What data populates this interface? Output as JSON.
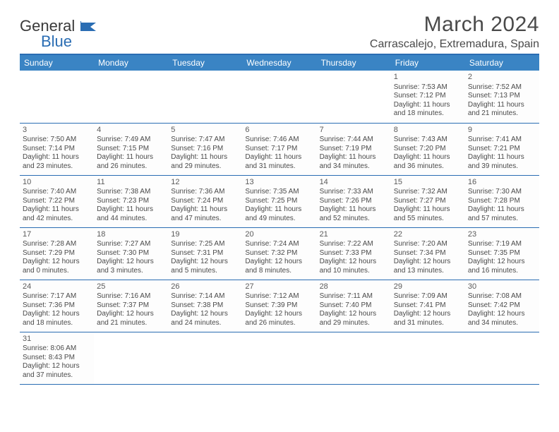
{
  "logo": {
    "text1": "General",
    "text2": "Blue"
  },
  "title": "March 2024",
  "location": "Carrascalejo, Extremadura, Spain",
  "day_headers": [
    "Sunday",
    "Monday",
    "Tuesday",
    "Wednesday",
    "Thursday",
    "Friday",
    "Saturday"
  ],
  "colors": {
    "header_bg": "#3a84c4",
    "rule": "#2a6db3",
    "text": "#4a4a4a"
  },
  "weeks": [
    [
      null,
      null,
      null,
      null,
      null,
      {
        "d": "1",
        "sr": "7:53 AM",
        "ss": "7:12 PM",
        "dl": "11 hours and 18 minutes."
      },
      {
        "d": "2",
        "sr": "7:52 AM",
        "ss": "7:13 PM",
        "dl": "11 hours and 21 minutes."
      }
    ],
    [
      {
        "d": "3",
        "sr": "7:50 AM",
        "ss": "7:14 PM",
        "dl": "11 hours and 23 minutes."
      },
      {
        "d": "4",
        "sr": "7:49 AM",
        "ss": "7:15 PM",
        "dl": "11 hours and 26 minutes."
      },
      {
        "d": "5",
        "sr": "7:47 AM",
        "ss": "7:16 PM",
        "dl": "11 hours and 29 minutes."
      },
      {
        "d": "6",
        "sr": "7:46 AM",
        "ss": "7:17 PM",
        "dl": "11 hours and 31 minutes."
      },
      {
        "d": "7",
        "sr": "7:44 AM",
        "ss": "7:19 PM",
        "dl": "11 hours and 34 minutes."
      },
      {
        "d": "8",
        "sr": "7:43 AM",
        "ss": "7:20 PM",
        "dl": "11 hours and 36 minutes."
      },
      {
        "d": "9",
        "sr": "7:41 AM",
        "ss": "7:21 PM",
        "dl": "11 hours and 39 minutes."
      }
    ],
    [
      {
        "d": "10",
        "sr": "7:40 AM",
        "ss": "7:22 PM",
        "dl": "11 hours and 42 minutes."
      },
      {
        "d": "11",
        "sr": "7:38 AM",
        "ss": "7:23 PM",
        "dl": "11 hours and 44 minutes."
      },
      {
        "d": "12",
        "sr": "7:36 AM",
        "ss": "7:24 PM",
        "dl": "11 hours and 47 minutes."
      },
      {
        "d": "13",
        "sr": "7:35 AM",
        "ss": "7:25 PM",
        "dl": "11 hours and 49 minutes."
      },
      {
        "d": "14",
        "sr": "7:33 AM",
        "ss": "7:26 PM",
        "dl": "11 hours and 52 minutes."
      },
      {
        "d": "15",
        "sr": "7:32 AM",
        "ss": "7:27 PM",
        "dl": "11 hours and 55 minutes."
      },
      {
        "d": "16",
        "sr": "7:30 AM",
        "ss": "7:28 PM",
        "dl": "11 hours and 57 minutes."
      }
    ],
    [
      {
        "d": "17",
        "sr": "7:28 AM",
        "ss": "7:29 PM",
        "dl": "12 hours and 0 minutes."
      },
      {
        "d": "18",
        "sr": "7:27 AM",
        "ss": "7:30 PM",
        "dl": "12 hours and 3 minutes."
      },
      {
        "d": "19",
        "sr": "7:25 AM",
        "ss": "7:31 PM",
        "dl": "12 hours and 5 minutes."
      },
      {
        "d": "20",
        "sr": "7:24 AM",
        "ss": "7:32 PM",
        "dl": "12 hours and 8 minutes."
      },
      {
        "d": "21",
        "sr": "7:22 AM",
        "ss": "7:33 PM",
        "dl": "12 hours and 10 minutes."
      },
      {
        "d": "22",
        "sr": "7:20 AM",
        "ss": "7:34 PM",
        "dl": "12 hours and 13 minutes."
      },
      {
        "d": "23",
        "sr": "7:19 AM",
        "ss": "7:35 PM",
        "dl": "12 hours and 16 minutes."
      }
    ],
    [
      {
        "d": "24",
        "sr": "7:17 AM",
        "ss": "7:36 PM",
        "dl": "12 hours and 18 minutes."
      },
      {
        "d": "25",
        "sr": "7:16 AM",
        "ss": "7:37 PM",
        "dl": "12 hours and 21 minutes."
      },
      {
        "d": "26",
        "sr": "7:14 AM",
        "ss": "7:38 PM",
        "dl": "12 hours and 24 minutes."
      },
      {
        "d": "27",
        "sr": "7:12 AM",
        "ss": "7:39 PM",
        "dl": "12 hours and 26 minutes."
      },
      {
        "d": "28",
        "sr": "7:11 AM",
        "ss": "7:40 PM",
        "dl": "12 hours and 29 minutes."
      },
      {
        "d": "29",
        "sr": "7:09 AM",
        "ss": "7:41 PM",
        "dl": "12 hours and 31 minutes."
      },
      {
        "d": "30",
        "sr": "7:08 AM",
        "ss": "7:42 PM",
        "dl": "12 hours and 34 minutes."
      }
    ],
    [
      {
        "d": "31",
        "sr": "8:06 AM",
        "ss": "8:43 PM",
        "dl": "12 hours and 37 minutes."
      },
      null,
      null,
      null,
      null,
      null,
      null
    ]
  ],
  "labels": {
    "sunrise": "Sunrise: ",
    "sunset": "Sunset: ",
    "daylight": "Daylight: "
  }
}
